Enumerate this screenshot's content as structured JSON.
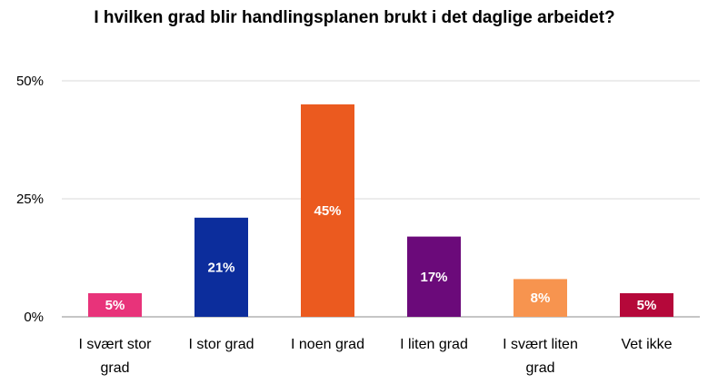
{
  "chart_data": {
    "type": "bar",
    "title": "I hvilken grad blir handlingsplanen brukt i det daglige arbeidet?",
    "categories": [
      "I svært stor grad",
      "I stor grad",
      "I noen grad",
      "I liten grad",
      "I svært liten grad",
      "Vet ikke"
    ],
    "category_lines": [
      [
        "I svært stor",
        "grad"
      ],
      [
        "I stor grad"
      ],
      [
        "I noen grad"
      ],
      [
        "I liten grad"
      ],
      [
        "I svært liten",
        "grad"
      ],
      [
        "Vet ikke"
      ]
    ],
    "values": [
      5,
      21,
      45,
      17,
      8,
      5
    ],
    "data_labels": [
      "5%",
      "21%",
      "45%",
      "17%",
      "8%",
      "5%"
    ],
    "colors": [
      "#E8337A",
      "#0C2D9C",
      "#EB5A1F",
      "#6B0A7A",
      "#F7944F",
      "#B5083A"
    ],
    "ylim": [
      0,
      50
    ],
    "yticks": [
      0,
      25,
      50
    ],
    "ytick_labels": [
      "0%",
      "25%",
      "50%"
    ],
    "grid": true,
    "xlabel": "",
    "ylabel": ""
  }
}
